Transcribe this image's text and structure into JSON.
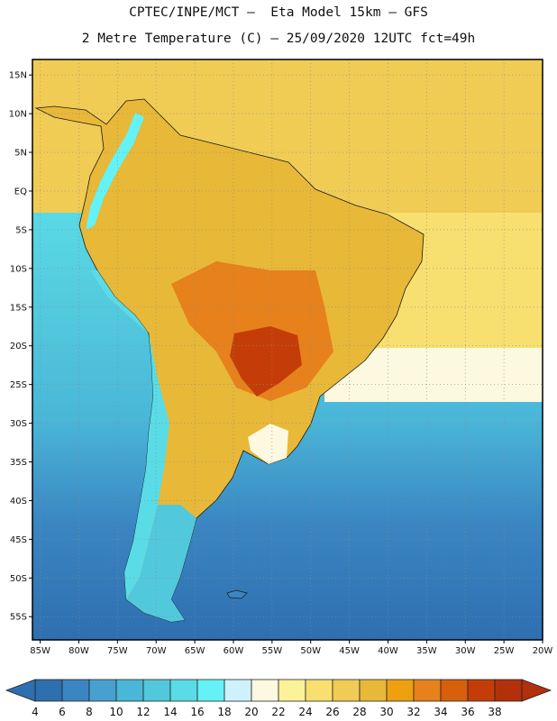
{
  "header": {
    "line1": "CPTEC/INPE/MCT –  Eta Model 15km – GFS",
    "line2": "2 Metre Temperature (C) – 25/09/2020 12UTC fct=49h"
  },
  "map": {
    "region": "South America",
    "lon_range": [
      -86,
      -20
    ],
    "lat_range": [
      -58,
      17
    ],
    "lat_ticks": [
      {
        "value": 15,
        "label": "15N"
      },
      {
        "value": 10,
        "label": "10N"
      },
      {
        "value": 5,
        "label": "5N"
      },
      {
        "value": 0,
        "label": "EQ"
      },
      {
        "value": -5,
        "label": "5S"
      },
      {
        "value": -10,
        "label": "10S"
      },
      {
        "value": -15,
        "label": "15S"
      },
      {
        "value": -20,
        "label": "20S"
      },
      {
        "value": -25,
        "label": "25S"
      },
      {
        "value": -30,
        "label": "30S"
      },
      {
        "value": -35,
        "label": "35S"
      },
      {
        "value": -40,
        "label": "40S"
      },
      {
        "value": -45,
        "label": "45S"
      },
      {
        "value": -50,
        "label": "50S"
      },
      {
        "value": -55,
        "label": "55S"
      }
    ],
    "lon_ticks": [
      {
        "value": -85,
        "label": "85W"
      },
      {
        "value": -80,
        "label": "80W"
      },
      {
        "value": -75,
        "label": "75W"
      },
      {
        "value": -70,
        "label": "70W"
      },
      {
        "value": -65,
        "label": "65W"
      },
      {
        "value": -60,
        "label": "60W"
      },
      {
        "value": -55,
        "label": "55W"
      },
      {
        "value": -50,
        "label": "50W"
      },
      {
        "value": -45,
        "label": "45W"
      },
      {
        "value": -40,
        "label": "40W"
      },
      {
        "value": -35,
        "label": "35W"
      },
      {
        "value": -30,
        "label": "30W"
      },
      {
        "value": -25,
        "label": "25W"
      },
      {
        "value": -20,
        "label": "20W"
      }
    ]
  },
  "colorbar": {
    "levels": [
      "4",
      "6",
      "8",
      "10",
      "12",
      "14",
      "16",
      "18",
      "20",
      "22",
      "24",
      "26",
      "28",
      "30",
      "32",
      "34",
      "36",
      "38"
    ],
    "colors": [
      "#2e6fb0",
      "#3a86c2",
      "#48a0d0",
      "#4ab6d8",
      "#52c8dc",
      "#5adce6",
      "#64f2f6",
      "#cdf2fb",
      "#fdf8e0",
      "#fcf29a",
      "#f8e070",
      "#f0cc55",
      "#e8b838",
      "#eea010",
      "#e6811c",
      "#d85f0c",
      "#c43d08",
      "#b3310a"
    ]
  }
}
